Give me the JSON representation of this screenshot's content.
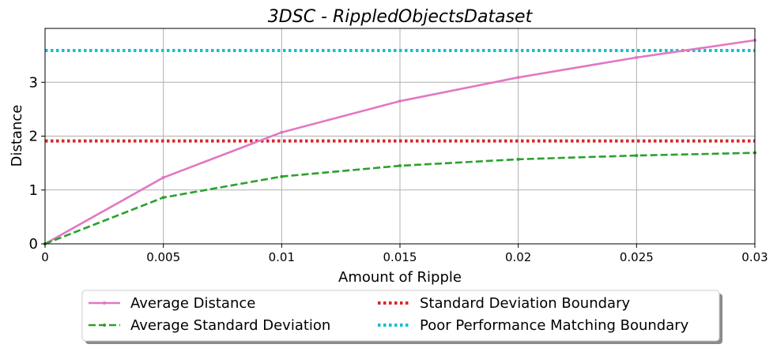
{
  "chart_data": {
    "type": "line",
    "title": "3DSC - RippledObjectsDataset",
    "xlabel": "Amount of Ripple",
    "ylabel": "Distance",
    "xlim": [
      0,
      0.03
    ],
    "ylim": [
      0,
      4.0
    ],
    "x_ticks": [
      "0",
      "0.005",
      "0.01",
      "0.015",
      "0.02",
      "0.025",
      "0.03"
    ],
    "x_tick_values": [
      0,
      0.005,
      0.01,
      0.015,
      0.02,
      0.025,
      0.03
    ],
    "y_ticks": [
      "0",
      "1",
      "2",
      "3"
    ],
    "y_tick_values": [
      0,
      1,
      2,
      3
    ],
    "grid": true,
    "legend_position": "bottom, outside plot, two columns",
    "x": [
      0,
      0.005,
      0.01,
      0.015,
      0.02,
      0.025,
      0.03
    ],
    "series": [
      {
        "name": "Average Distance",
        "values": [
          0,
          1.23,
          2.07,
          2.65,
          3.09,
          3.46,
          3.78
        ],
        "color": "#e377c2",
        "style": "solid"
      },
      {
        "name": "Average Standard Deviation",
        "values": [
          0,
          0.86,
          1.25,
          1.45,
          1.57,
          1.64,
          1.69
        ],
        "color": "#2ca02c",
        "style": "dashed"
      }
    ],
    "reference_lines": [
      {
        "name": "Standard Deviation Boundary",
        "y": 1.91,
        "color": "#d62728",
        "style": "dotted"
      },
      {
        "name": "Poor Performance Matching Boundary",
        "y": 3.59,
        "color": "#17becf",
        "style": "dotted"
      }
    ]
  }
}
